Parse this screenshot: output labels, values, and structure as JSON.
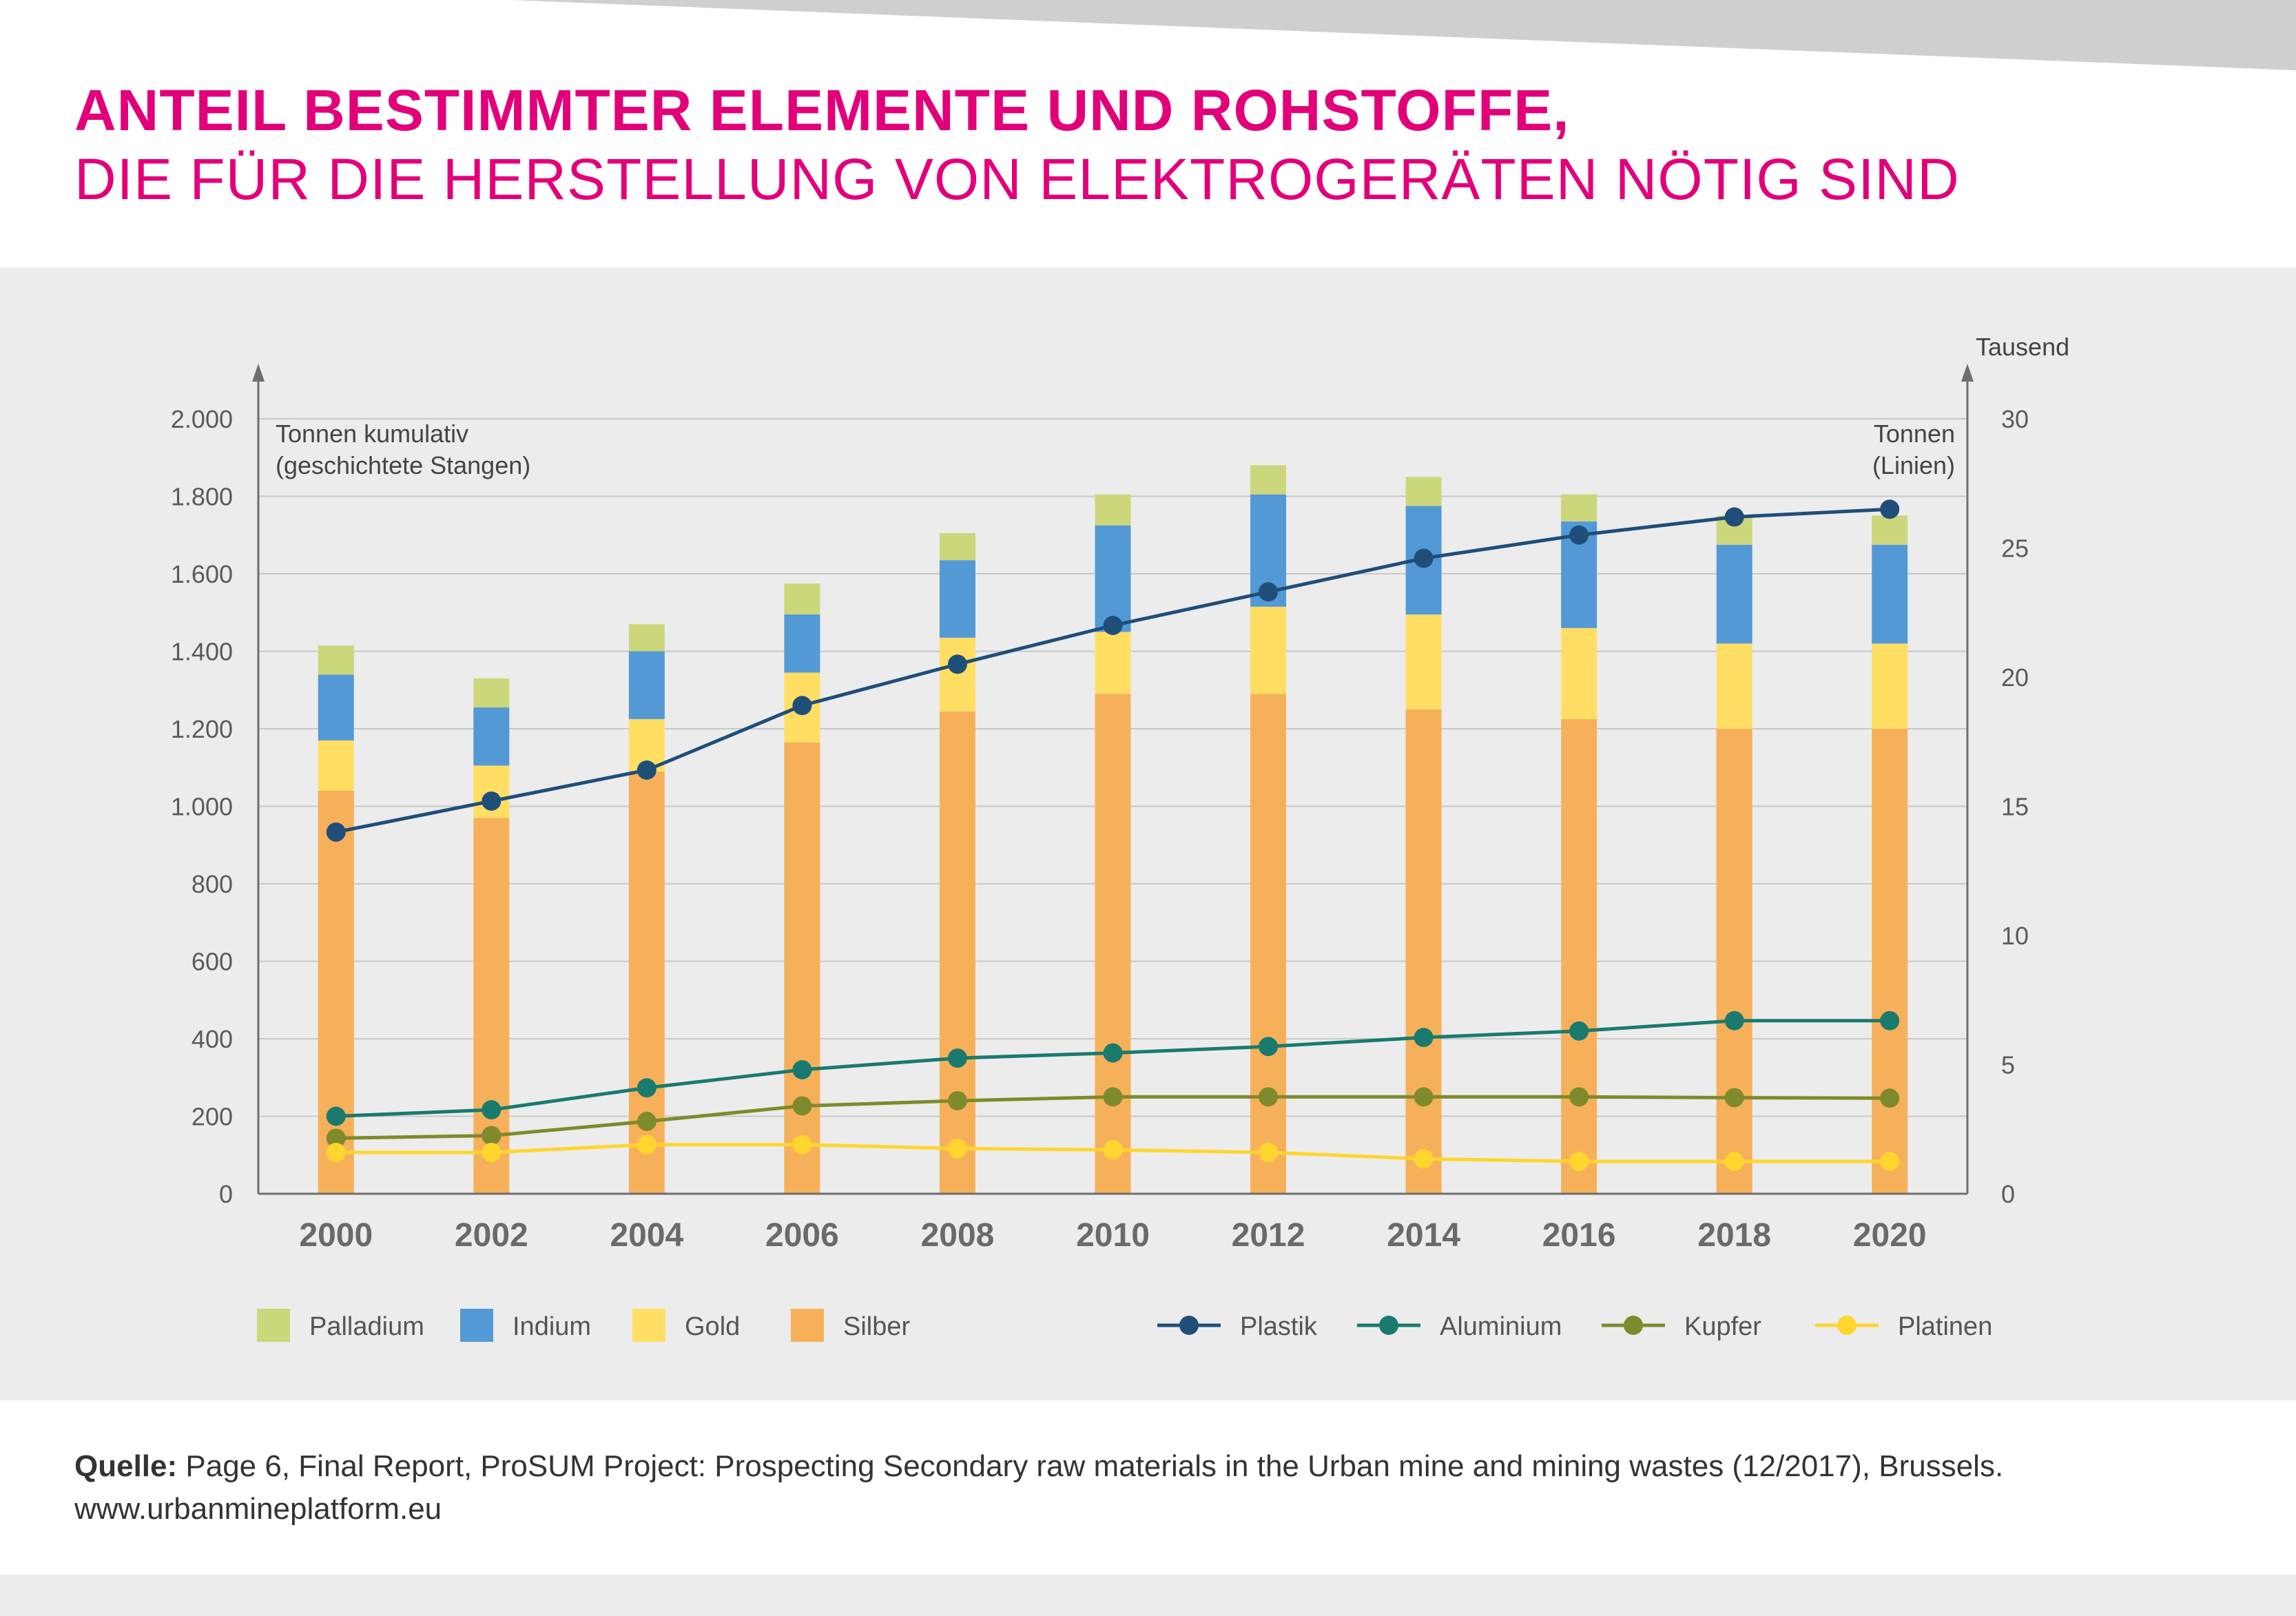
{
  "title": {
    "line1": "ANTEIL BESTIMMTER ELEMENTE UND ROHSTOFFE,",
    "line2": "DIE FÜR DIE HERSTELLUNG VON ELEKTROGERÄTEN NÖTIG SIND"
  },
  "colors": {
    "accent": "#e2007a",
    "panel": "#ececec",
    "grid": "#c8c8c8",
    "axis": "#6e6e6e",
    "tick_text": "#5a5a5a"
  },
  "source": {
    "label": "Quelle:",
    "text": "Page 6, Final Report, ProSUM Project: Prospecting Secondary raw materials in the Urban mine and mining wastes (12/2017), Brussels.",
    "url": "www.urbanmineplatform.eu"
  },
  "chart_data": {
    "type": "bar+line",
    "x": [
      "2000",
      "2002",
      "2004",
      "2006",
      "2008",
      "2010",
      "2012",
      "2014",
      "2016",
      "2018",
      "2020"
    ],
    "left_axis": {
      "label_line1": "Tonnen kumulativ",
      "label_line2": "(geschichtete Stangen)",
      "range": [
        0,
        2000
      ],
      "ticks": [
        0,
        200,
        400,
        600,
        800,
        1000,
        1200,
        1400,
        1600,
        1800,
        2000
      ],
      "tick_labels": [
        "0",
        "200",
        "400",
        "600",
        "800",
        "1.000",
        "1.200",
        "1.400",
        "1.600",
        "1.800",
        "2.000"
      ]
    },
    "right_axis": {
      "unit": "Tausend",
      "label_line1": "Tonnen",
      "label_line2": "(Linien)",
      "range": [
        0,
        30
      ],
      "ticks": [
        0,
        5,
        10,
        15,
        20,
        25,
        30
      ],
      "tick_labels": [
        "0",
        "5",
        "10",
        "15",
        "20",
        "25",
        "30"
      ]
    },
    "grid": true,
    "stacked_bars": [
      {
        "name": "Silber",
        "color": "#f7b05a",
        "values": [
          1040,
          970,
          1090,
          1165,
          1245,
          1290,
          1290,
          1250,
          1225,
          1200,
          1200
        ]
      },
      {
        "name": "Gold",
        "color": "#ffde63",
        "values": [
          130,
          135,
          135,
          180,
          190,
          160,
          225,
          245,
          235,
          220,
          220
        ]
      },
      {
        "name": "Indium",
        "color": "#5399d6",
        "values": [
          170,
          150,
          175,
          150,
          200,
          275,
          290,
          280,
          275,
          255,
          255
        ]
      },
      {
        "name": "Palladium",
        "color": "#ccd67a",
        "values": [
          75,
          75,
          70,
          80,
          70,
          80,
          75,
          75,
          70,
          75,
          75
        ]
      }
    ],
    "lines": [
      {
        "name": "Plastik",
        "color": "#1f4e79",
        "values": [
          14.0,
          15.2,
          16.4,
          18.9,
          20.5,
          22.0,
          23.3,
          24.6,
          25.5,
          26.2,
          26.5
        ]
      },
      {
        "name": "Aluminium",
        "color": "#1a7a6e",
        "values": [
          3.0,
          3.25,
          4.1,
          4.8,
          5.25,
          5.45,
          5.7,
          6.05,
          6.3,
          6.7,
          6.7
        ]
      },
      {
        "name": "Kupfer",
        "color": "#7e8a2c",
        "values": [
          2.15,
          2.25,
          2.8,
          3.4,
          3.6,
          3.75,
          3.75,
          3.75,
          3.75,
          3.72,
          3.7
        ]
      },
      {
        "name": "Platinen",
        "color": "#ffd52e",
        "values": [
          1.6,
          1.6,
          1.9,
          1.9,
          1.75,
          1.7,
          1.6,
          1.35,
          1.25,
          1.25,
          1.25
        ]
      }
    ],
    "legend_bars": [
      "Palladium",
      "Indium",
      "Gold",
      "Silber"
    ],
    "legend_lines": [
      "Plastik",
      "Aluminium",
      "Kupfer",
      "Platinen"
    ],
    "legend_position": "bottom"
  }
}
